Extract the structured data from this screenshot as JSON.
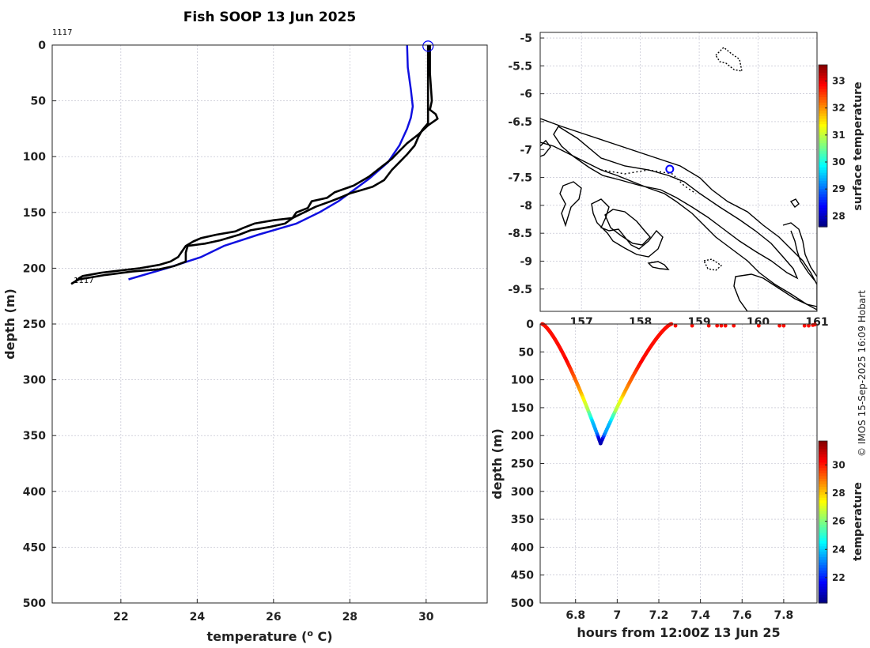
{
  "credit": "© IMOS 15-Sep-2025 16:09 Hobart",
  "chart_data": [
    {
      "id": "profile",
      "type": "line",
      "title": "Fish SOOP 13 Jun 2025",
      "xlabel": "temperature (",
      "xlabel_sup": "o",
      "xlabel_tail": " C)",
      "ylabel": "depth (m)",
      "xlim": [
        20.2,
        31.6
      ],
      "ylim": [
        0,
        500
      ],
      "xticks": [
        22,
        24,
        26,
        28,
        30
      ],
      "yticks": [
        0,
        50,
        100,
        150,
        200,
        250,
        300,
        350,
        400,
        450,
        500
      ],
      "grid": true,
      "labels": [
        {
          "text": "1117",
          "x": 20.2,
          "y": 0,
          "anchor": "top-left"
        },
        {
          "text": "1117",
          "x": 20.7,
          "y": 214,
          "anchor": "right-below"
        }
      ],
      "start_marker": {
        "x": 30.05,
        "y": 1,
        "color": "#0000ff"
      },
      "series": [
        {
          "name": "climatology",
          "color": "#1010e0",
          "points": [
            [
              29.5,
              0
            ],
            [
              29.52,
              20
            ],
            [
              29.6,
              40
            ],
            [
              29.65,
              55
            ],
            [
              29.6,
              65
            ],
            [
              29.5,
              75
            ],
            [
              29.3,
              90
            ],
            [
              29.0,
              105
            ],
            [
              28.5,
              120
            ],
            [
              28.1,
              130
            ],
            [
              27.7,
              140
            ],
            [
              27.2,
              150
            ],
            [
              26.6,
              160
            ],
            [
              25.6,
              170
            ],
            [
              24.7,
              180
            ],
            [
              24.1,
              190
            ],
            [
              23.2,
              200
            ],
            [
              22.2,
              210
            ]
          ]
        },
        {
          "name": "downcast",
          "color": "#000000",
          "points": [
            [
              30.1,
              0
            ],
            [
              30.1,
              25
            ],
            [
              30.15,
              50
            ],
            [
              30.1,
              58
            ],
            [
              30.25,
              62
            ],
            [
              30.3,
              66
            ],
            [
              30.05,
              72
            ],
            [
              29.8,
              80
            ],
            [
              29.5,
              88
            ],
            [
              29.3,
              95
            ],
            [
              29.1,
              102
            ],
            [
              28.8,
              110
            ],
            [
              28.5,
              118
            ],
            [
              28.1,
              126
            ],
            [
              27.6,
              132
            ],
            [
              27.4,
              137
            ],
            [
              27.0,
              140
            ],
            [
              26.9,
              146
            ],
            [
              26.6,
              150
            ],
            [
              26.5,
              155
            ],
            [
              26.0,
              157
            ],
            [
              25.5,
              160
            ],
            [
              25.2,
              164
            ],
            [
              25.0,
              167
            ],
            [
              24.5,
              170
            ],
            [
              24.1,
              173
            ],
            [
              23.9,
              176
            ],
            [
              23.7,
              180
            ],
            [
              23.6,
              185
            ],
            [
              23.5,
              190
            ],
            [
              23.3,
              194
            ],
            [
              23.0,
              197
            ],
            [
              22.5,
              200
            ],
            [
              22.0,
              202
            ],
            [
              21.5,
              204
            ],
            [
              21.0,
              207
            ],
            [
              20.9,
              209
            ],
            [
              20.8,
              212
            ],
            [
              20.7,
              214
            ]
          ]
        },
        {
          "name": "upcast",
          "color": "#000000",
          "points": [
            [
              20.7,
              214
            ],
            [
              20.9,
              210
            ],
            [
              21.6,
              206
            ],
            [
              22.3,
              203
            ],
            [
              23.0,
              201
            ],
            [
              23.4,
              198
            ],
            [
              23.7,
              194
            ],
            [
              23.7,
              186
            ],
            [
              23.75,
              180
            ],
            [
              24.2,
              178
            ],
            [
              24.6,
              175
            ],
            [
              25.1,
              170
            ],
            [
              25.4,
              166
            ],
            [
              25.9,
              163
            ],
            [
              26.3,
              160
            ],
            [
              26.5,
              155
            ],
            [
              26.8,
              150
            ],
            [
              27.1,
              145
            ],
            [
              27.5,
              140
            ],
            [
              27.8,
              136
            ],
            [
              28.0,
              133
            ],
            [
              28.3,
              130
            ],
            [
              28.6,
              127
            ],
            [
              28.9,
              121
            ],
            [
              29.1,
              112
            ],
            [
              29.3,
              105
            ],
            [
              29.5,
              98
            ],
            [
              29.7,
              90
            ],
            [
              29.8,
              82
            ],
            [
              29.9,
              76
            ],
            [
              30.05,
              70
            ],
            [
              30.05,
              60
            ],
            [
              30.05,
              50
            ],
            [
              30.05,
              30
            ],
            [
              30.05,
              0
            ]
          ]
        }
      ]
    },
    {
      "id": "map",
      "type": "map",
      "xlim": [
        156.3,
        161.0
      ],
      "ylim": [
        -9.9,
        -4.9
      ],
      "xticks": [
        157,
        158,
        159,
        160,
        161
      ],
      "xtick_labels": [
        "157",
        "158",
        "159",
        "160",
        "161"
      ],
      "yticks": [
        -5,
        -5.5,
        -6,
        -6.5,
        -7,
        -7.5,
        -8,
        -8.5,
        -9,
        -9.5
      ],
      "location": {
        "lon": 158.5,
        "lat": -7.35,
        "color": "#0000ff"
      },
      "colorbar": {
        "label": "surface temperature",
        "min": 27.6,
        "max": 33.6,
        "ticks": [
          28,
          29,
          30,
          31,
          32,
          33
        ]
      }
    },
    {
      "id": "section",
      "type": "scatter",
      "xlabel": "hours from 12:00Z 13 Jun 25",
      "ylabel": "depth (m)",
      "xlim": [
        6.63,
        7.96
      ],
      "ylim": [
        0,
        500
      ],
      "xticks": [
        6.8,
        7,
        7.2,
        7.4,
        7.6,
        7.8
      ],
      "yticks": [
        0,
        50,
        100,
        150,
        200,
        250,
        300,
        350,
        400,
        450,
        500
      ],
      "colorbar": {
        "label": "temperature",
        "min": 20.2,
        "max": 31.7,
        "ticks": [
          22,
          24,
          26,
          28,
          30
        ]
      },
      "down_profile": {
        "t_start": 6.64,
        "t_end": 6.92,
        "depth_max": 214
      },
      "up_profile": {
        "t_start": 6.92,
        "t_end": 7.26,
        "depth_max": 214
      },
      "surface_points": {
        "times": [
          7.28,
          7.36,
          7.44,
          7.48,
          7.5,
          7.52,
          7.56,
          7.68,
          7.78,
          7.8,
          7.9,
          7.92,
          7.94,
          7.95
        ],
        "depths": [
          3,
          3,
          3,
          3,
          3,
          3,
          3,
          3,
          3,
          3,
          3,
          3,
          2,
          1
        ],
        "temperature": 30.1
      }
    }
  ]
}
